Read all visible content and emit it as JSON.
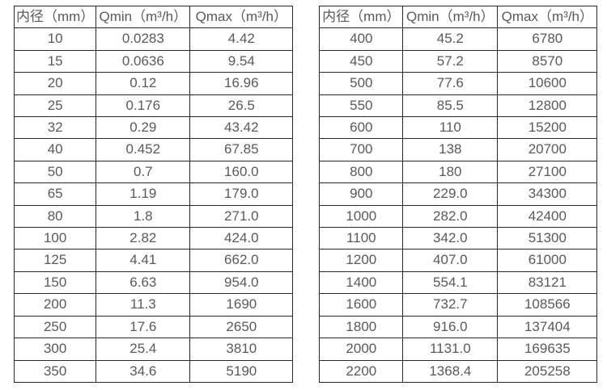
{
  "colors": {
    "background": "#ffffff",
    "border": "#262626",
    "text": "#595959"
  },
  "chart_data": [
    {
      "type": "table",
      "name": "flow-rate-table-small-diameters",
      "columns": [
        "内径（mm）",
        "Qmin（m³/h）",
        "Qmax（m³/h）"
      ],
      "rows": [
        [
          "10",
          "0.0283",
          "4.42"
        ],
        [
          "15",
          "0.0636",
          "9.54"
        ],
        [
          "20",
          "0.12",
          "16.96"
        ],
        [
          "25",
          "0.176",
          "26.5"
        ],
        [
          "32",
          "0.29",
          "43.42"
        ],
        [
          "40",
          "0.452",
          "67.85"
        ],
        [
          "50",
          "0.7",
          "160.0"
        ],
        [
          "65",
          "1.19",
          "179.0"
        ],
        [
          "80",
          "1.8",
          "271.0"
        ],
        [
          "100",
          "2.82",
          "424.0"
        ],
        [
          "125",
          "4.41",
          "662.0"
        ],
        [
          "150",
          "6.63",
          "954.0"
        ],
        [
          "200",
          "11.3",
          "1690"
        ],
        [
          "250",
          "17.6",
          "2650"
        ],
        [
          "300",
          "25.4",
          "3810"
        ],
        [
          "350",
          "34.6",
          "5190"
        ]
      ]
    },
    {
      "type": "table",
      "name": "flow-rate-table-large-diameters",
      "columns": [
        "内径（mm）",
        "Qmin（m³/h）",
        "Qmax（m³/h）"
      ],
      "rows": [
        [
          "400",
          "45.2",
          "6780"
        ],
        [
          "450",
          "57.2",
          "8570"
        ],
        [
          "500",
          "77.6",
          "10600"
        ],
        [
          "550",
          "85.5",
          "12800"
        ],
        [
          "600",
          "110",
          "15200"
        ],
        [
          "700",
          "138",
          "20700"
        ],
        [
          "800",
          "180",
          "27100"
        ],
        [
          "900",
          "229.0",
          "34300"
        ],
        [
          "1000",
          "282.0",
          "42400"
        ],
        [
          "1100",
          "342.0",
          "51300"
        ],
        [
          "1200",
          "407.0",
          "61000"
        ],
        [
          "1400",
          "554.1",
          "83121"
        ],
        [
          "1600",
          "732.7",
          "108566"
        ],
        [
          "1800",
          "916.0",
          "137404"
        ],
        [
          "2000",
          "1131.0",
          "169635"
        ],
        [
          "2200",
          "1368.4",
          "205258"
        ]
      ]
    }
  ]
}
